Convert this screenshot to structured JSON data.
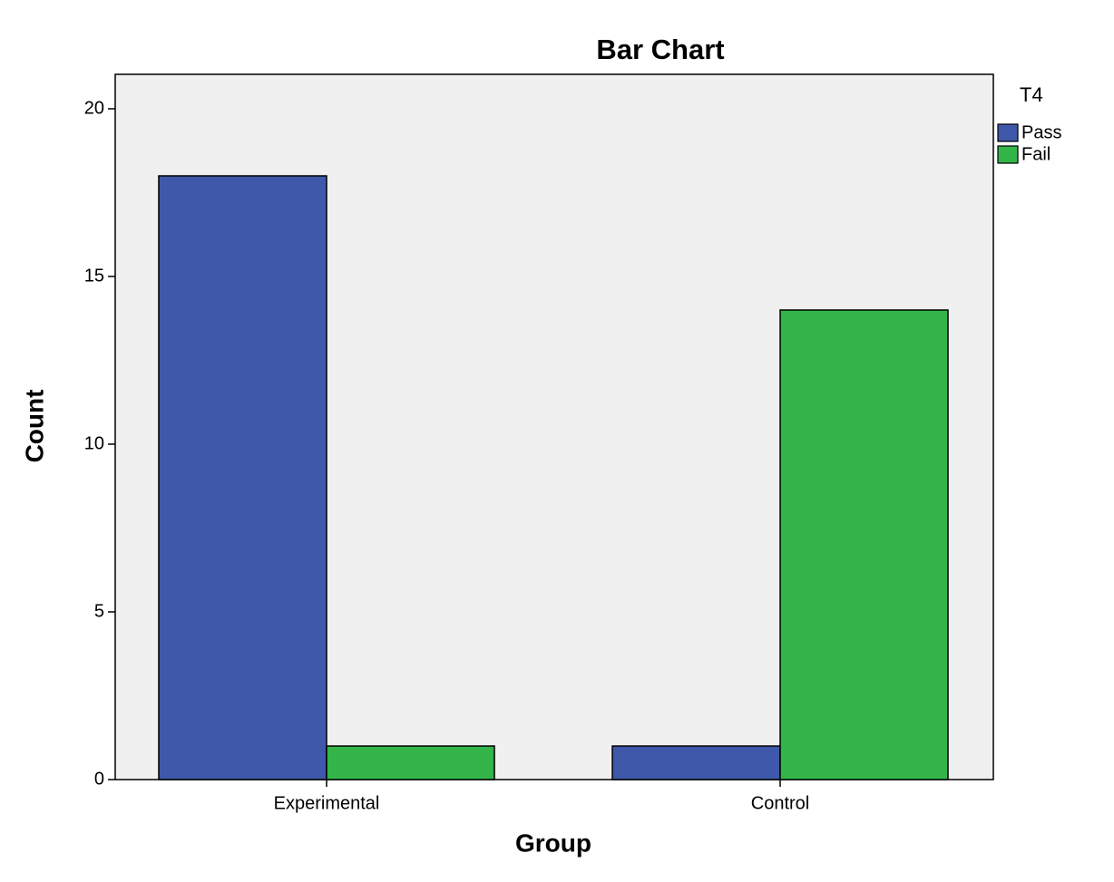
{
  "chart_data": {
    "type": "bar",
    "title": "Bar Chart",
    "x_label": "Group",
    "y_label": "Count",
    "categories": [
      "Experimental",
      "Control"
    ],
    "series": [
      {
        "name": "Pass",
        "color": "#3f58aa",
        "values": [
          18,
          1
        ]
      },
      {
        "name": "Fail",
        "color": "#33b54a",
        "values": [
          1,
          14
        ]
      }
    ],
    "legend_title": "T4",
    "legend": "right",
    "ylim": [
      0,
      21
    ],
    "yticks": [
      0,
      5,
      10,
      15,
      20
    ]
  }
}
